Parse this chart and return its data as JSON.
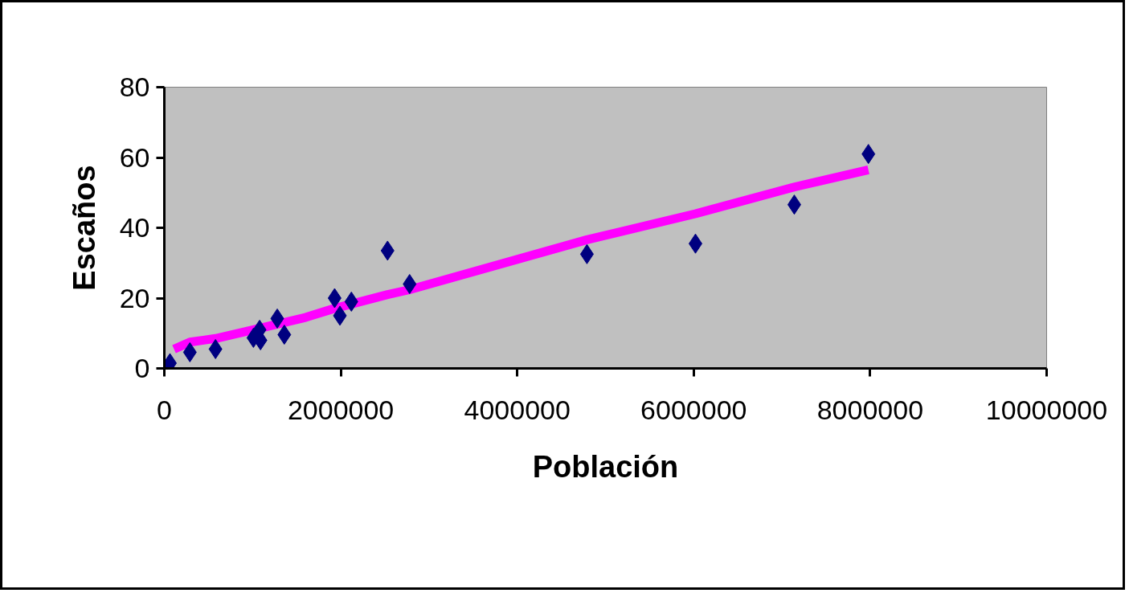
{
  "chart_data": {
    "type": "scatter",
    "xlabel": "Población",
    "ylabel": "Escaños",
    "xlim": [
      0,
      10000000
    ],
    "ylim": [
      0,
      80
    ],
    "xticks": [
      0,
      2000000,
      4000000,
      6000000,
      8000000,
      10000000
    ],
    "yticks": [
      0,
      20,
      40,
      60,
      80
    ],
    "grid": false,
    "marker": "diamond",
    "series": [
      {
        "color": "#000080",
        "x": [
          64000,
          290000,
          580000,
          1010000,
          1080000,
          1090000,
          1280000,
          1360000,
          1930000,
          1990000,
          2120000,
          2530000,
          2780000,
          4790000,
          6020000,
          7140000,
          7980000
        ],
        "values": [
          1.5,
          4.6,
          5.5,
          8.7,
          11,
          8,
          14.2,
          9.6,
          20,
          15,
          19,
          33.5,
          24,
          32.5,
          35.5,
          46.6,
          61
        ]
      },
      {
        "type": "line",
        "color": "#ff00ff",
        "marker": "none",
        "x": [
          110000,
          290000,
          580000,
          1010000,
          1600000,
          1920000,
          2530000,
          2780000,
          4790000,
          6020000,
          7140000,
          7980000
        ],
        "values": [
          5.5,
          7.5,
          8.5,
          11,
          14.5,
          17,
          21,
          22.4,
          36.6,
          44,
          51.6,
          56.5
        ]
      }
    ]
  }
}
